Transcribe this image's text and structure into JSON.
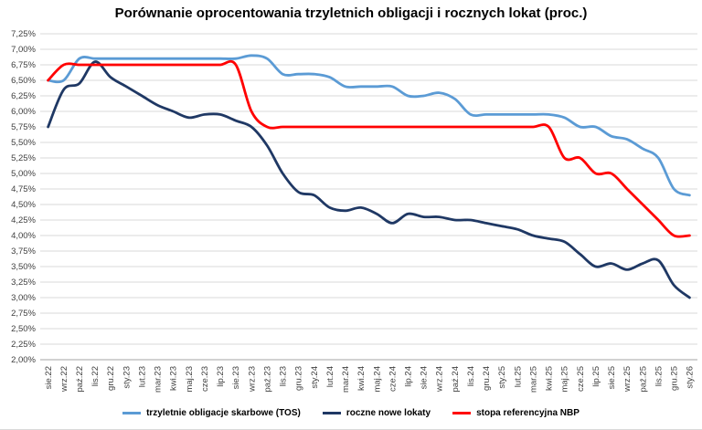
{
  "chart_data": {
    "type": "line",
    "title": "Porównanie oprocentowania trzyletnich obligacji i rocznych lokat (proc.)",
    "categories": [
      "sie.22",
      "wrz.22",
      "paź.22",
      "lis.22",
      "gru.22",
      "sty.23",
      "lut.23",
      "mar.23",
      "kwi.23",
      "maj.23",
      "cze.23",
      "lip.23",
      "sie.23",
      "wrz.23",
      "paź.23",
      "lis.23",
      "gru.23",
      "sty.24",
      "lut.24",
      "mar.24",
      "kwi.24",
      "maj.24",
      "cze.24",
      "lip.24",
      "sie.24",
      "wrz.24",
      "paź.24",
      "lis.24",
      "gru.24",
      "sty.25",
      "lut.25",
      "mar.25",
      "kwi.25",
      "maj.25",
      "cze.25",
      "lip.25",
      "sie.25",
      "wrz.25",
      "paź.25",
      "lis.25",
      "gru.25",
      "sty.26"
    ],
    "series": [
      {
        "name": "trzyletnie obligacje skarbowe (TOS)",
        "color": "#5B9BD5",
        "values": [
          6.5,
          6.5,
          6.85,
          6.85,
          6.85,
          6.85,
          6.85,
          6.85,
          6.85,
          6.85,
          6.85,
          6.85,
          6.85,
          6.9,
          6.85,
          6.6,
          6.6,
          6.6,
          6.55,
          6.4,
          6.4,
          6.4,
          6.4,
          6.25,
          6.25,
          6.3,
          6.2,
          5.95,
          5.95,
          5.95,
          5.95,
          5.95,
          5.95,
          5.9,
          5.75,
          5.75,
          5.6,
          5.55,
          5.4,
          5.25,
          4.75,
          4.65
        ]
      },
      {
        "name": "roczne nowe lokaty",
        "color": "#1F3864",
        "values": [
          5.75,
          6.35,
          6.45,
          6.8,
          6.55,
          6.4,
          6.25,
          6.1,
          6.0,
          5.9,
          5.95,
          5.95,
          5.85,
          5.75,
          5.45,
          5.0,
          4.7,
          4.65,
          4.45,
          4.4,
          4.45,
          4.35,
          4.2,
          4.35,
          4.3,
          4.3,
          4.25,
          4.25,
          4.2,
          4.15,
          4.1,
          4.0,
          3.95,
          3.9,
          3.7,
          3.5,
          3.55,
          3.45,
          3.55,
          3.6,
          3.2,
          3.0
        ]
      },
      {
        "name": "stopa referencyjna NBP",
        "color": "#FF0000",
        "values": [
          6.5,
          6.75,
          6.75,
          6.75,
          6.75,
          6.75,
          6.75,
          6.75,
          6.75,
          6.75,
          6.75,
          6.75,
          6.75,
          6.0,
          5.75,
          5.75,
          5.75,
          5.75,
          5.75,
          5.75,
          5.75,
          5.75,
          5.75,
          5.75,
          5.75,
          5.75,
          5.75,
          5.75,
          5.75,
          5.75,
          5.75,
          5.75,
          5.75,
          5.25,
          5.25,
          5.0,
          5.0,
          4.75,
          4.5,
          4.25,
          4.0,
          4.0
        ]
      }
    ],
    "y_axis": {
      "min": 2.0,
      "max": 7.25,
      "step": 0.25,
      "format": "percent-comma",
      "tick_labels": [
        "7,25%",
        "7,00%",
        "6,75%",
        "6,50%",
        "6,25%",
        "6,00%",
        "5,75%",
        "5,50%",
        "5,25%",
        "5,00%",
        "4,75%",
        "4,50%",
        "4,25%",
        "4,00%",
        "3,75%",
        "3,50%",
        "3,25%",
        "3,00%",
        "2,75%",
        "2,50%",
        "2,25%",
        "2,00%"
      ]
    },
    "grid": true,
    "smooth": true,
    "legend_position": "bottom"
  },
  "colors": {
    "background": "#FFFFFF",
    "gridline": "#D9D9D9",
    "axis_line": "#A6A6A6",
    "tick_label": "#404040",
    "title_text": "#000000"
  }
}
